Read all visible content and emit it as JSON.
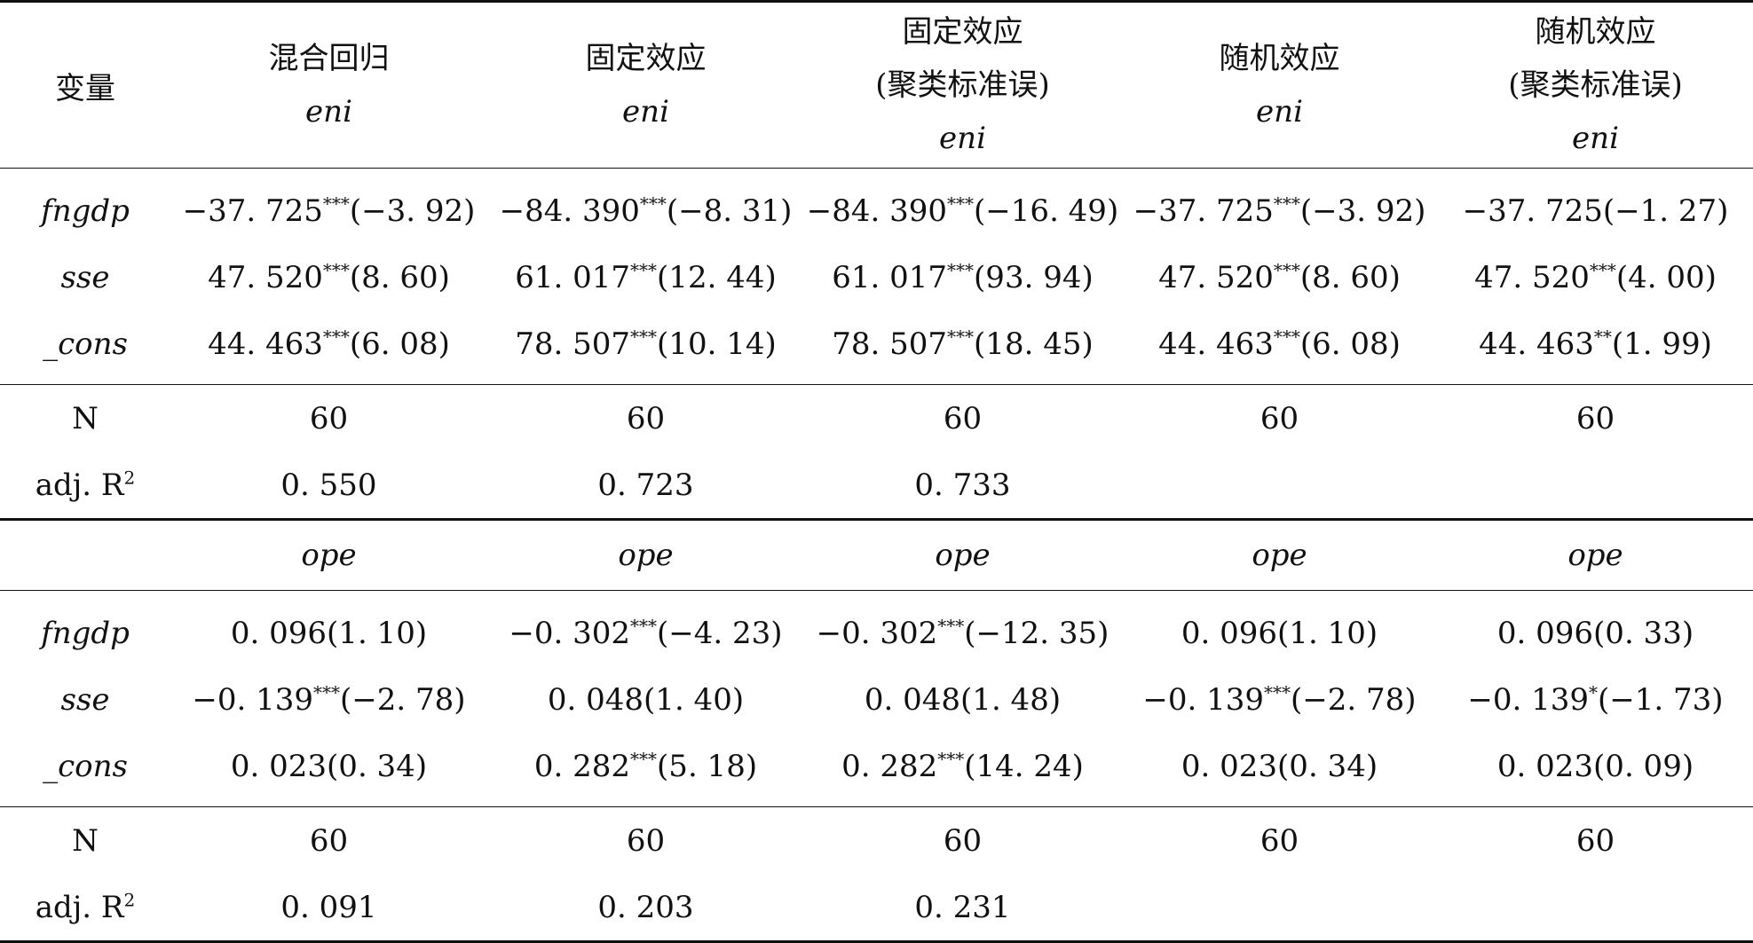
{
  "header": {
    "var_label": "变量",
    "columns": [
      {
        "title": "混合回归",
        "title2": "",
        "dep": "eni"
      },
      {
        "title": "固定效应",
        "title2": "",
        "dep": "eni"
      },
      {
        "title": "固定效应",
        "title2": "(聚类标准误)",
        "dep": "eni"
      },
      {
        "title": "随机效应",
        "title2": "",
        "dep": "eni"
      },
      {
        "title": "随机效应",
        "title2": "(聚类标准误)",
        "dep": "eni"
      }
    ]
  },
  "panel1": {
    "rows": [
      {
        "var": "fngdp",
        "cells": [
          {
            "coef": "−37. 725",
            "sig": "***",
            "t": "(−3. 92)"
          },
          {
            "coef": "−84. 390",
            "sig": "***",
            "t": "(−8. 31)"
          },
          {
            "coef": "−84. 390",
            "sig": "***",
            "t": "(−16. 49)"
          },
          {
            "coef": "−37. 725",
            "sig": "***",
            "t": "(−3. 92)"
          },
          {
            "coef": "−37. 725",
            "sig": "",
            "t": "(−1. 27)"
          }
        ]
      },
      {
        "var": "sse",
        "cells": [
          {
            "coef": "47. 520",
            "sig": "***",
            "t": "(8. 60)"
          },
          {
            "coef": "61. 017",
            "sig": "***",
            "t": "(12. 44)"
          },
          {
            "coef": "61. 017",
            "sig": "***",
            "t": "(93. 94)"
          },
          {
            "coef": "47. 520",
            "sig": "***",
            "t": "(8. 60)"
          },
          {
            "coef": "47. 520",
            "sig": "***",
            "t": "(4. 00)"
          }
        ]
      },
      {
        "var": "_cons",
        "cells": [
          {
            "coef": "44. 463",
            "sig": "***",
            "t": "(6. 08)"
          },
          {
            "coef": "78. 507",
            "sig": "***",
            "t": "(10. 14)"
          },
          {
            "coef": "78. 507",
            "sig": "***",
            "t": "(18. 45)"
          },
          {
            "coef": "44. 463",
            "sig": "***",
            "t": "(6. 08)"
          },
          {
            "coef": "44. 463",
            "sig": "**",
            "t": "(1. 99)"
          }
        ]
      }
    ],
    "n_label": "N",
    "n_values": [
      "60",
      "60",
      "60",
      "60",
      "60"
    ],
    "r2_label": "adj. R",
    "r2_sup": "2",
    "r2_values": [
      "0. 550",
      "0. 723",
      "0. 733",
      "",
      ""
    ]
  },
  "panel2": {
    "dep_values": [
      "ope",
      "ope",
      "ope",
      "ope",
      "ope"
    ],
    "rows": [
      {
        "var": "fngdp",
        "cells": [
          {
            "coef": "0. 096",
            "sig": "",
            "t": "(1. 10)"
          },
          {
            "coef": "−0. 302",
            "sig": "***",
            "t": "(−4. 23)"
          },
          {
            "coef": "−0. 302",
            "sig": "***",
            "t": "(−12. 35)"
          },
          {
            "coef": "0. 096",
            "sig": "",
            "t": "(1. 10)"
          },
          {
            "coef": "0. 096",
            "sig": "",
            "t": "(0. 33)"
          }
        ]
      },
      {
        "var": "sse",
        "cells": [
          {
            "coef": "−0. 139",
            "sig": "***",
            "t": "(−2. 78)"
          },
          {
            "coef": "0. 048",
            "sig": "",
            "t": "(1. 40)"
          },
          {
            "coef": "0. 048",
            "sig": "",
            "t": "(1. 48)"
          },
          {
            "coef": "−0. 139",
            "sig": "***",
            "t": "(−2. 78)"
          },
          {
            "coef": "−0. 139",
            "sig": "*",
            "t": "(−1. 73)"
          }
        ]
      },
      {
        "var": "_cons",
        "cells": [
          {
            "coef": "0. 023",
            "sig": "",
            "t": "(0. 34)"
          },
          {
            "coef": "0. 282",
            "sig": "***",
            "t": "(5. 18)"
          },
          {
            "coef": "0. 282",
            "sig": "***",
            "t": "(14. 24)"
          },
          {
            "coef": "0. 023",
            "sig": "",
            "t": "(0. 34)"
          },
          {
            "coef": "0. 023",
            "sig": "",
            "t": "(0. 09)"
          }
        ]
      }
    ],
    "n_label": "N",
    "n_values": [
      "60",
      "60",
      "60",
      "60",
      "60"
    ],
    "r2_label": "adj. R",
    "r2_sup": "2",
    "r2_values": [
      "0. 091",
      "0. 203",
      "0. 231",
      "",
      ""
    ]
  }
}
